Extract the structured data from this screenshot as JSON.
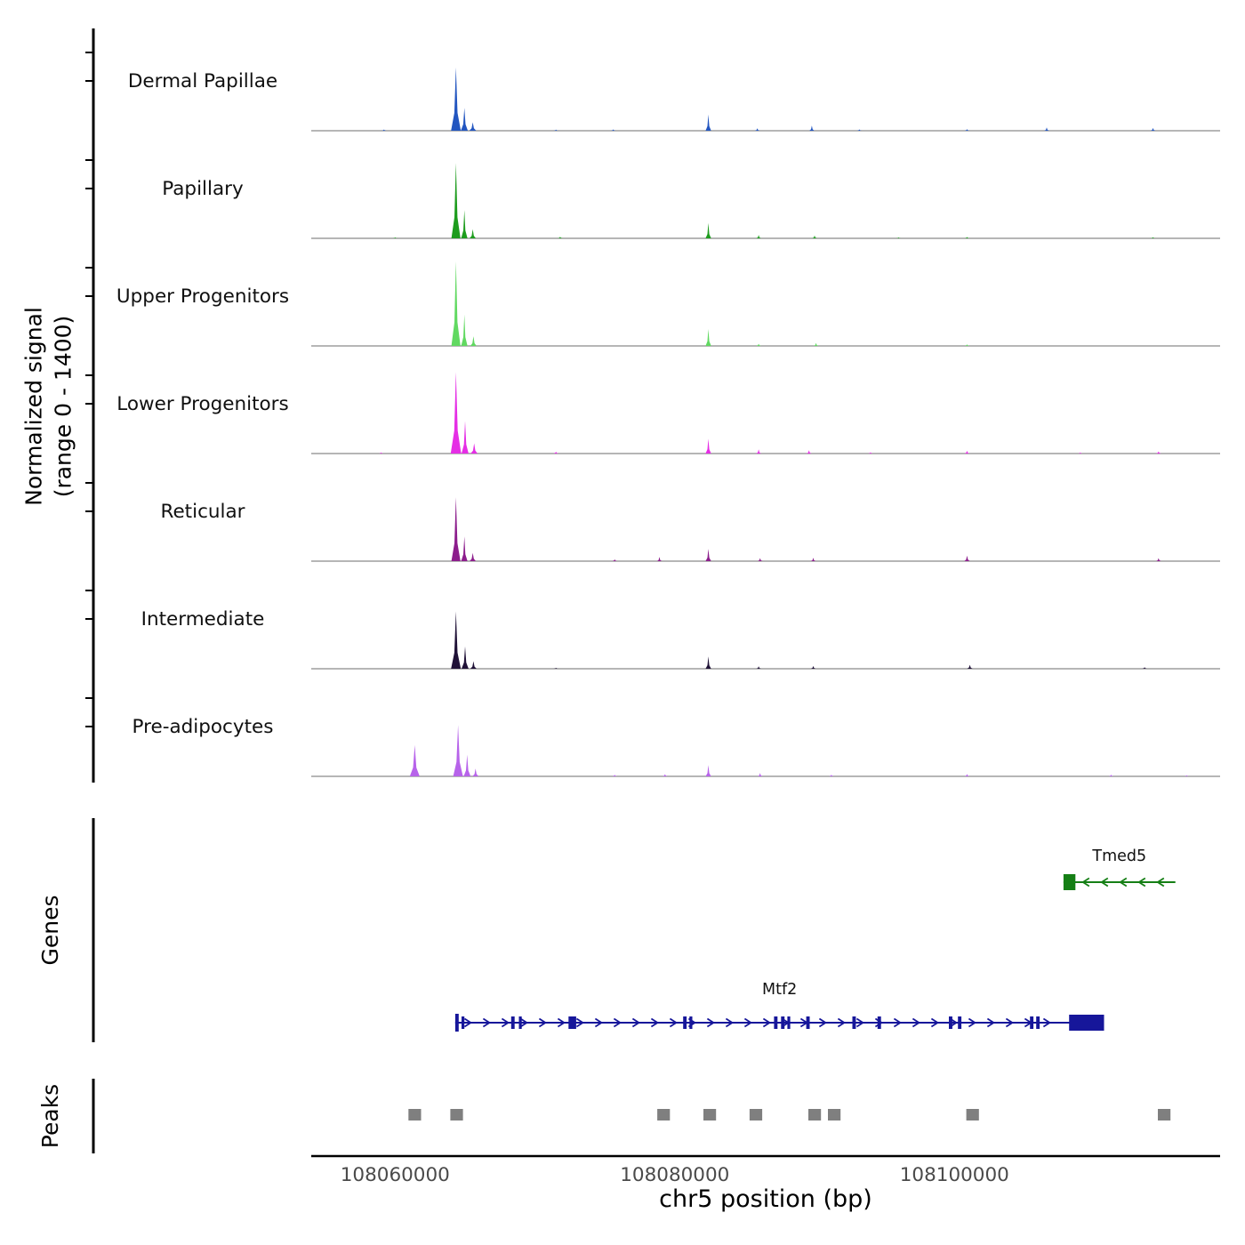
{
  "axes": {
    "signal_label": "Normalized signal\n(range 0 - 1400)",
    "genes_label": "Genes",
    "peaks_label": "Peaks",
    "x_title": "chr5 position (bp)"
  },
  "chart_data": {
    "type": "area",
    "title": "",
    "xlabel": "chr5 position (bp)",
    "ylabel": "Normalized signal (range 0 - 1400)",
    "x_axis": {
      "range": [
        108054000,
        108119000
      ],
      "ticks": [
        108060000,
        108080000,
        108100000
      ],
      "tick_labels": [
        "108060000",
        "108080000",
        "108100000"
      ]
    },
    "y_axis": {
      "per_track_range": [
        0,
        1400
      ]
    },
    "signal_tracks": [
      {
        "label": "Dermal Papillae",
        "color": "#2356c0",
        "peaks": [
          [
            108059200,
            20,
            350
          ],
          [
            108064350,
            1050,
            700
          ],
          [
            108064950,
            380,
            500
          ],
          [
            108065550,
            140,
            500
          ],
          [
            108071500,
            18,
            350
          ],
          [
            108075600,
            22,
            350
          ],
          [
            108082400,
            270,
            400
          ],
          [
            108085900,
            40,
            350
          ],
          [
            108089800,
            85,
            350
          ],
          [
            108093200,
            22,
            350
          ],
          [
            108100900,
            25,
            350
          ],
          [
            108106600,
            55,
            350
          ],
          [
            108114200,
            45,
            350
          ]
        ]
      },
      {
        "label": "Papillary",
        "color": "#1d9c1d",
        "peaks": [
          [
            108060000,
            15,
            350
          ],
          [
            108064350,
            1250,
            650
          ],
          [
            108064950,
            470,
            450
          ],
          [
            108065550,
            150,
            450
          ],
          [
            108071800,
            25,
            350
          ],
          [
            108082400,
            255,
            400
          ],
          [
            108086000,
            55,
            350
          ],
          [
            108090000,
            45,
            350
          ],
          [
            108096000,
            15,
            350
          ],
          [
            108100900,
            22,
            350
          ],
          [
            108114200,
            18,
            350
          ]
        ]
      },
      {
        "label": "Upper Progenitors",
        "color": "#61d961",
        "peaks": [
          [
            108064350,
            1400,
            650
          ],
          [
            108064950,
            520,
            450
          ],
          [
            108065600,
            160,
            450
          ],
          [
            108082400,
            280,
            400
          ],
          [
            108086000,
            35,
            350
          ],
          [
            108090100,
            50,
            350
          ],
          [
            108100900,
            25,
            350
          ]
        ]
      },
      {
        "label": "Lower Progenitors",
        "color": "#e52ee5",
        "peaks": [
          [
            108059000,
            18,
            350
          ],
          [
            108064350,
            1350,
            750
          ],
          [
            108065000,
            540,
            500
          ],
          [
            108065650,
            170,
            500
          ],
          [
            108071500,
            30,
            350
          ],
          [
            108082400,
            245,
            400
          ],
          [
            108086000,
            70,
            350
          ],
          [
            108089600,
            55,
            350
          ],
          [
            108094000,
            20,
            350
          ],
          [
            108100900,
            45,
            350
          ],
          [
            108109000,
            18,
            350
          ],
          [
            108114600,
            35,
            350
          ]
        ]
      },
      {
        "label": "Reticular",
        "color": "#8c1d8c",
        "peaks": [
          [
            108064350,
            1060,
            650
          ],
          [
            108064950,
            410,
            450
          ],
          [
            108065550,
            135,
            450
          ],
          [
            108075700,
            30,
            350
          ],
          [
            108078900,
            70,
            350
          ],
          [
            108082400,
            205,
            400
          ],
          [
            108086100,
            50,
            350
          ],
          [
            108089900,
            55,
            350
          ],
          [
            108100900,
            90,
            400
          ],
          [
            108114600,
            50,
            350
          ]
        ]
      },
      {
        "label": "Intermediate",
        "color": "#201237",
        "peaks": [
          [
            108064350,
            950,
            700
          ],
          [
            108065000,
            370,
            500
          ],
          [
            108065600,
            125,
            450
          ],
          [
            108071500,
            15,
            350
          ],
          [
            108082400,
            205,
            400
          ],
          [
            108086000,
            40,
            350
          ],
          [
            108089900,
            45,
            350
          ],
          [
            108101100,
            65,
            400
          ],
          [
            108113600,
            25,
            350
          ]
        ]
      },
      {
        "label": "Pre-adipocytes",
        "color": "#b763ea",
        "peaks": [
          [
            108061400,
            520,
            700
          ],
          [
            108064500,
            850,
            700
          ],
          [
            108065150,
            360,
            500
          ],
          [
            108065750,
            130,
            450
          ],
          [
            108075700,
            25,
            350
          ],
          [
            108079300,
            35,
            350
          ],
          [
            108082400,
            185,
            400
          ],
          [
            108086100,
            55,
            350
          ],
          [
            108091200,
            28,
            350
          ],
          [
            108100900,
            38,
            350
          ],
          [
            108111200,
            28,
            350
          ],
          [
            108116600,
            18,
            350
          ]
        ]
      }
    ],
    "genes": [
      {
        "name": "Tmed5",
        "color": "#157f15",
        "start": 108107800,
        "end": 108115800,
        "strand": "-",
        "row": 0,
        "thick": [
          108107800,
          108108650
        ],
        "exons": []
      },
      {
        "name": "Mtf2",
        "color": "#16169a",
        "start": 108064300,
        "end": 108110700,
        "strand": "+",
        "row": 1,
        "thick": [
          108108200,
          108110700
        ],
        "exons": [
          [
            108064300,
            108064550
          ],
          [
            108064750,
            108064950
          ],
          [
            108068300,
            108068550
          ],
          [
            108068850,
            108069050
          ],
          [
            108072400,
            108072950
          ],
          [
            108080600,
            108080850
          ],
          [
            108081050,
            108081250
          ],
          [
            108087100,
            108087350
          ],
          [
            108087600,
            108087850
          ],
          [
            108088050,
            108088250
          ],
          [
            108089400,
            108089650
          ],
          [
            108092700,
            108092950
          ],
          [
            108094500,
            108094750
          ],
          [
            108099600,
            108099850
          ],
          [
            108100250,
            108100500
          ],
          [
            108105400,
            108105650
          ],
          [
            108105850,
            108106100
          ]
        ]
      }
    ],
    "peaks": {
      "color": "#7f7f7f",
      "regions": [
        [
          108060950,
          108061850
        ],
        [
          108063950,
          108064850
        ],
        [
          108078750,
          108079650
        ],
        [
          108082050,
          108082950
        ],
        [
          108085350,
          108086250
        ],
        [
          108089550,
          108090450
        ],
        [
          108090950,
          108091850
        ],
        [
          108100850,
          108101750
        ],
        [
          108114550,
          108115450
        ]
      ]
    }
  }
}
